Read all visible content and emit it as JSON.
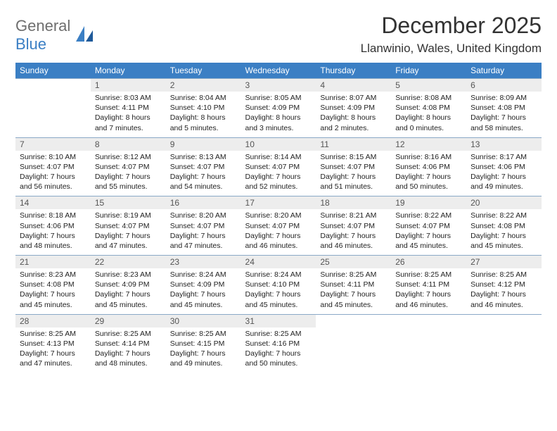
{
  "brand": {
    "part1": "General",
    "part2": "Blue"
  },
  "title": "December 2025",
  "location": "Llanwinio, Wales, United Kingdom",
  "colors": {
    "header_bg": "#3b7fc4",
    "header_text": "#ffffff",
    "daynum_bg": "#ededed",
    "rule": "#8aa9c7",
    "logo_gray": "#6e6e6e",
    "logo_blue": "#3b7fc4"
  },
  "day_headers": [
    "Sunday",
    "Monday",
    "Tuesday",
    "Wednesday",
    "Thursday",
    "Friday",
    "Saturday"
  ],
  "weeks": [
    {
      "nums": [
        "",
        "1",
        "2",
        "3",
        "4",
        "5",
        "6"
      ],
      "cells": [
        null,
        {
          "sunrise": "8:03 AM",
          "sunset": "4:11 PM",
          "dh": 8,
          "dm": 7
        },
        {
          "sunrise": "8:04 AM",
          "sunset": "4:10 PM",
          "dh": 8,
          "dm": 5
        },
        {
          "sunrise": "8:05 AM",
          "sunset": "4:09 PM",
          "dh": 8,
          "dm": 3
        },
        {
          "sunrise": "8:07 AM",
          "sunset": "4:09 PM",
          "dh": 8,
          "dm": 2
        },
        {
          "sunrise": "8:08 AM",
          "sunset": "4:08 PM",
          "dh": 8,
          "dm": 0
        },
        {
          "sunrise": "8:09 AM",
          "sunset": "4:08 PM",
          "dh": 7,
          "dm": 58
        }
      ]
    },
    {
      "nums": [
        "7",
        "8",
        "9",
        "10",
        "11",
        "12",
        "13"
      ],
      "cells": [
        {
          "sunrise": "8:10 AM",
          "sunset": "4:07 PM",
          "dh": 7,
          "dm": 56
        },
        {
          "sunrise": "8:12 AM",
          "sunset": "4:07 PM",
          "dh": 7,
          "dm": 55
        },
        {
          "sunrise": "8:13 AM",
          "sunset": "4:07 PM",
          "dh": 7,
          "dm": 54
        },
        {
          "sunrise": "8:14 AM",
          "sunset": "4:07 PM",
          "dh": 7,
          "dm": 52
        },
        {
          "sunrise": "8:15 AM",
          "sunset": "4:07 PM",
          "dh": 7,
          "dm": 51
        },
        {
          "sunrise": "8:16 AM",
          "sunset": "4:06 PM",
          "dh": 7,
          "dm": 50
        },
        {
          "sunrise": "8:17 AM",
          "sunset": "4:06 PM",
          "dh": 7,
          "dm": 49
        }
      ]
    },
    {
      "nums": [
        "14",
        "15",
        "16",
        "17",
        "18",
        "19",
        "20"
      ],
      "cells": [
        {
          "sunrise": "8:18 AM",
          "sunset": "4:06 PM",
          "dh": 7,
          "dm": 48
        },
        {
          "sunrise": "8:19 AM",
          "sunset": "4:07 PM",
          "dh": 7,
          "dm": 47
        },
        {
          "sunrise": "8:20 AM",
          "sunset": "4:07 PM",
          "dh": 7,
          "dm": 47
        },
        {
          "sunrise": "8:20 AM",
          "sunset": "4:07 PM",
          "dh": 7,
          "dm": 46
        },
        {
          "sunrise": "8:21 AM",
          "sunset": "4:07 PM",
          "dh": 7,
          "dm": 46
        },
        {
          "sunrise": "8:22 AM",
          "sunset": "4:07 PM",
          "dh": 7,
          "dm": 45
        },
        {
          "sunrise": "8:22 AM",
          "sunset": "4:08 PM",
          "dh": 7,
          "dm": 45
        }
      ]
    },
    {
      "nums": [
        "21",
        "22",
        "23",
        "24",
        "25",
        "26",
        "27"
      ],
      "cells": [
        {
          "sunrise": "8:23 AM",
          "sunset": "4:08 PM",
          "dh": 7,
          "dm": 45
        },
        {
          "sunrise": "8:23 AM",
          "sunset": "4:09 PM",
          "dh": 7,
          "dm": 45
        },
        {
          "sunrise": "8:24 AM",
          "sunset": "4:09 PM",
          "dh": 7,
          "dm": 45
        },
        {
          "sunrise": "8:24 AM",
          "sunset": "4:10 PM",
          "dh": 7,
          "dm": 45
        },
        {
          "sunrise": "8:25 AM",
          "sunset": "4:11 PM",
          "dh": 7,
          "dm": 45
        },
        {
          "sunrise": "8:25 AM",
          "sunset": "4:11 PM",
          "dh": 7,
          "dm": 46
        },
        {
          "sunrise": "8:25 AM",
          "sunset": "4:12 PM",
          "dh": 7,
          "dm": 46
        }
      ]
    },
    {
      "nums": [
        "28",
        "29",
        "30",
        "31",
        "",
        "",
        ""
      ],
      "cells": [
        {
          "sunrise": "8:25 AM",
          "sunset": "4:13 PM",
          "dh": 7,
          "dm": 47
        },
        {
          "sunrise": "8:25 AM",
          "sunset": "4:14 PM",
          "dh": 7,
          "dm": 48
        },
        {
          "sunrise": "8:25 AM",
          "sunset": "4:15 PM",
          "dh": 7,
          "dm": 49
        },
        {
          "sunrise": "8:25 AM",
          "sunset": "4:16 PM",
          "dh": 7,
          "dm": 50
        },
        null,
        null,
        null
      ]
    }
  ]
}
